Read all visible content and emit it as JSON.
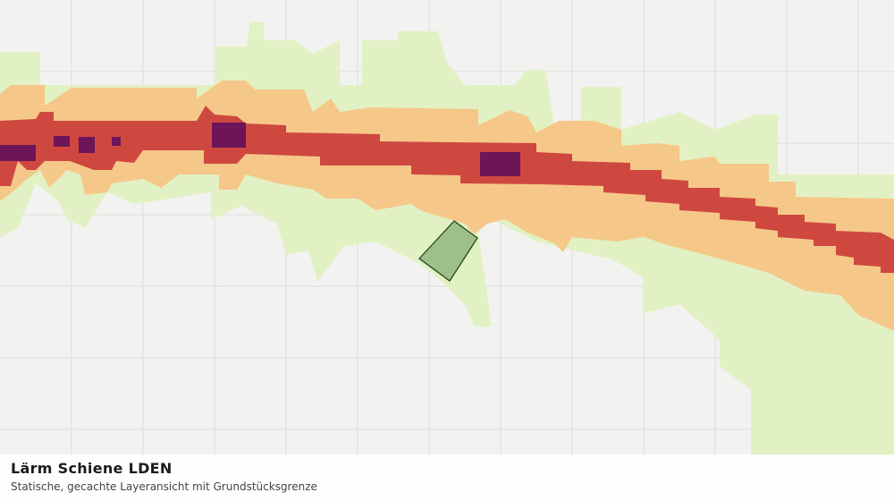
{
  "map": {
    "title": "Lärm Schiene LDEN",
    "subtitle": "Statische, gecachte Layeransicht mit Grundstücksgrenze"
  }
}
